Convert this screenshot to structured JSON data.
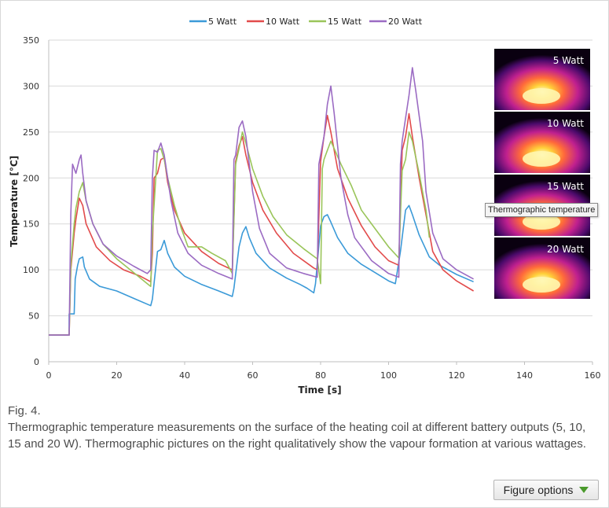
{
  "chart_data": {
    "type": "line",
    "xlabel": "Time [s]",
    "ylabel": "Temperature [°C]",
    "xlim": [
      0,
      160
    ],
    "ylim": [
      0,
      350
    ],
    "xticks": [
      0,
      20,
      40,
      60,
      80,
      100,
      120,
      140,
      160
    ],
    "yticks": [
      0,
      50,
      100,
      150,
      200,
      250,
      300,
      350
    ],
    "grid": "horizontal",
    "legend_position": "top",
    "series": [
      {
        "name": "5 Watt",
        "color": "#3b9ad8",
        "points": [
          [
            0,
            29
          ],
          [
            6,
            29
          ],
          [
            6,
            52
          ],
          [
            7.5,
            52
          ],
          [
            7.8,
            90
          ],
          [
            8.5,
            105
          ],
          [
            9,
            112
          ],
          [
            10,
            114
          ],
          [
            10.5,
            103
          ],
          [
            12,
            90
          ],
          [
            15,
            82
          ],
          [
            20,
            77
          ],
          [
            25,
            69
          ],
          [
            30,
            61
          ],
          [
            30.5,
            68
          ],
          [
            32,
            120
          ],
          [
            33,
            122
          ],
          [
            34,
            132
          ],
          [
            35,
            118
          ],
          [
            37,
            103
          ],
          [
            40,
            93
          ],
          [
            45,
            84
          ],
          [
            50,
            77
          ],
          [
            54,
            71
          ],
          [
            54.5,
            80
          ],
          [
            56,
            125
          ],
          [
            57,
            140
          ],
          [
            58,
            147
          ],
          [
            59,
            135
          ],
          [
            61,
            118
          ],
          [
            65,
            102
          ],
          [
            70,
            91
          ],
          [
            74,
            84
          ],
          [
            76,
            80
          ],
          [
            78,
            75
          ],
          [
            78.5,
            85
          ],
          [
            80,
            148
          ],
          [
            81,
            158
          ],
          [
            82,
            160
          ],
          [
            83,
            152
          ],
          [
            85,
            135
          ],
          [
            88,
            118
          ],
          [
            92,
            106
          ],
          [
            96,
            97
          ],
          [
            100,
            88
          ],
          [
            102,
            85
          ],
          [
            103.5,
            120
          ],
          [
            105,
            165
          ],
          [
            106,
            170
          ],
          [
            107,
            160
          ],
          [
            109,
            138
          ],
          [
            112,
            114
          ],
          [
            115,
            105
          ],
          [
            120,
            95
          ],
          [
            125,
            87
          ]
        ]
      },
      {
        "name": "10 Watt",
        "color": "#e24b4b",
        "points": [
          [
            0,
            29
          ],
          [
            6,
            29
          ],
          [
            6.5,
            100
          ],
          [
            7.5,
            140
          ],
          [
            8,
            155
          ],
          [
            9,
            178
          ],
          [
            10,
            170
          ],
          [
            11,
            150
          ],
          [
            14,
            125
          ],
          [
            18,
            110
          ],
          [
            22,
            100
          ],
          [
            27,
            93
          ],
          [
            30,
            87
          ],
          [
            30.5,
            118
          ],
          [
            31,
            200
          ],
          [
            32,
            205
          ],
          [
            33,
            220
          ],
          [
            34,
            222
          ],
          [
            35,
            195
          ],
          [
            37,
            165
          ],
          [
            40,
            140
          ],
          [
            45,
            120
          ],
          [
            50,
            107
          ],
          [
            54,
            100
          ],
          [
            55,
            218
          ],
          [
            56,
            235
          ],
          [
            57,
            245
          ],
          [
            58,
            225
          ],
          [
            60,
            195
          ],
          [
            63,
            165
          ],
          [
            67,
            140
          ],
          [
            72,
            118
          ],
          [
            78,
            102
          ],
          [
            79,
            100
          ],
          [
            80,
            218
          ],
          [
            81,
            245
          ],
          [
            82,
            268
          ],
          [
            83,
            250
          ],
          [
            85,
            210
          ],
          [
            88,
            178
          ],
          [
            92,
            148
          ],
          [
            96,
            125
          ],
          [
            100,
            110
          ],
          [
            103,
            105
          ],
          [
            104,
            230
          ],
          [
            105,
            245
          ],
          [
            106,
            270
          ],
          [
            107,
            245
          ],
          [
            109,
            200
          ],
          [
            111,
            160
          ],
          [
            113,
            120
          ],
          [
            116,
            100
          ],
          [
            120,
            88
          ],
          [
            125,
            77
          ]
        ]
      },
      {
        "name": "15 Watt",
        "color": "#9ac55a",
        "points": [
          [
            0,
            29
          ],
          [
            6,
            29
          ],
          [
            6.5,
            105
          ],
          [
            7.5,
            150
          ],
          [
            8,
            167
          ],
          [
            9,
            185
          ],
          [
            10,
            195
          ],
          [
            11,
            175
          ],
          [
            13,
            150
          ],
          [
            16,
            128
          ],
          [
            20,
            112
          ],
          [
            25,
            97
          ],
          [
            29,
            85
          ],
          [
            30,
            82
          ],
          [
            30.5,
            140
          ],
          [
            32,
            230
          ],
          [
            33,
            232
          ],
          [
            34,
            220
          ],
          [
            35,
            200
          ],
          [
            37,
            170
          ],
          [
            39,
            145
          ],
          [
            41,
            125
          ],
          [
            45,
            125
          ],
          [
            48,
            118
          ],
          [
            52,
            110
          ],
          [
            54,
            96
          ],
          [
            55,
            215
          ],
          [
            56,
            232
          ],
          [
            57,
            250
          ],
          [
            58,
            238
          ],
          [
            60,
            210
          ],
          [
            63,
            180
          ],
          [
            66,
            158
          ],
          [
            70,
            138
          ],
          [
            75,
            123
          ],
          [
            79,
            112
          ],
          [
            80,
            85
          ],
          [
            80.5,
            210
          ],
          [
            81,
            220
          ],
          [
            82,
            230
          ],
          [
            83,
            240
          ],
          [
            84,
            232
          ],
          [
            86,
            215
          ],
          [
            89,
            192
          ],
          [
            92,
            165
          ],
          [
            96,
            145
          ],
          [
            100,
            125
          ],
          [
            103,
            113
          ],
          [
            104,
            208
          ],
          [
            105,
            220
          ],
          [
            106,
            250
          ],
          [
            107,
            240
          ],
          [
            109,
            205
          ],
          [
            111,
            165
          ],
          [
            112,
            135
          ]
        ]
      },
      {
        "name": "20 Watt",
        "color": "#9b6bc3",
        "points": [
          [
            0,
            29
          ],
          [
            6,
            29
          ],
          [
            6.5,
            160
          ],
          [
            7,
            215
          ],
          [
            8,
            205
          ],
          [
            9,
            220
          ],
          [
            9.5,
            225
          ],
          [
            10,
            205
          ],
          [
            11,
            175
          ],
          [
            13,
            150
          ],
          [
            16,
            128
          ],
          [
            20,
            115
          ],
          [
            25,
            104
          ],
          [
            29,
            96
          ],
          [
            30,
            100
          ],
          [
            30.5,
            200
          ],
          [
            31,
            230
          ],
          [
            32,
            228
          ],
          [
            33,
            238
          ],
          [
            34,
            225
          ],
          [
            36,
            175
          ],
          [
            38,
            140
          ],
          [
            41,
            118
          ],
          [
            45,
            105
          ],
          [
            50,
            96
          ],
          [
            54,
            90
          ],
          [
            54.5,
            220
          ],
          [
            55,
            225
          ],
          [
            56,
            255
          ],
          [
            57,
            262
          ],
          [
            58,
            245
          ],
          [
            60,
            185
          ],
          [
            62,
            145
          ],
          [
            65,
            118
          ],
          [
            70,
            102
          ],
          [
            75,
            96
          ],
          [
            79,
            92
          ],
          [
            79.5,
            215
          ],
          [
            81,
            245
          ],
          [
            82,
            280
          ],
          [
            83,
            300
          ],
          [
            84,
            270
          ],
          [
            86,
            200
          ],
          [
            88,
            160
          ],
          [
            90,
            135
          ],
          [
            95,
            110
          ],
          [
            100,
            96
          ],
          [
            103,
            92
          ],
          [
            103.5,
            215
          ],
          [
            104,
            240
          ],
          [
            105,
            265
          ],
          [
            106,
            290
          ],
          [
            107,
            320
          ],
          [
            108,
            295
          ],
          [
            110,
            240
          ],
          [
            111,
            185
          ],
          [
            113,
            140
          ],
          [
            116,
            112
          ],
          [
            120,
            100
          ],
          [
            125,
            90
          ]
        ]
      }
    ],
    "annotations": [
      "5 Watt",
      "10 Watt",
      "15 Watt",
      "20 Watt"
    ],
    "tooltip": "Thermographic temperature"
  },
  "caption": {
    "fig": "Fig. 4.",
    "text": "Thermographic temperature measurements on the surface of the heating coil at different battery outputs (5, 10, 15 and 20 W). Thermographic pictures on the right qualitatively show the vapour formation at various wattages."
  },
  "figure_options": {
    "label": "Figure options"
  }
}
